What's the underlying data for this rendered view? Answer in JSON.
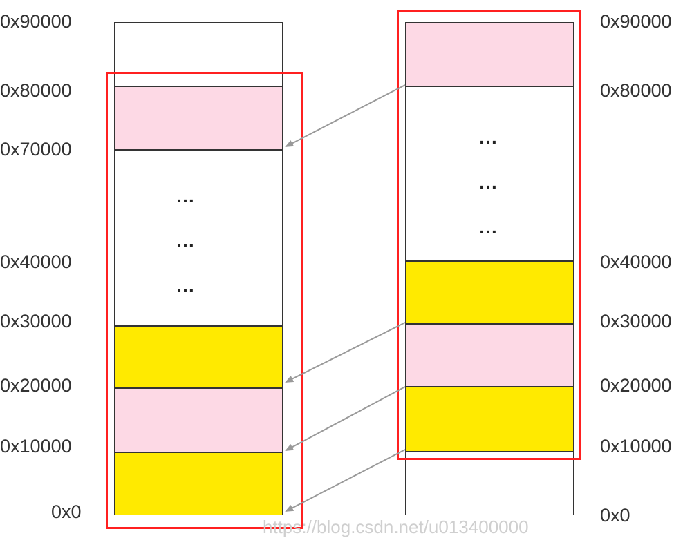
{
  "left_addresses": [
    "0x90000",
    "0x80000",
    "0x70000",
    "0x40000",
    "0x30000",
    "0x20000",
    "0x10000",
    "0x0"
  ],
  "right_addresses": [
    "0x90000",
    "0x80000",
    "0x40000",
    "0x30000",
    "0x20000",
    "0x10000",
    "0x0"
  ],
  "left_column": {
    "segments": [
      "white",
      "pink",
      "white",
      "yellow",
      "pink",
      "yellow"
    ],
    "dots": [
      "…",
      "…",
      "…"
    ]
  },
  "right_column": {
    "segments": [
      "pink",
      "white",
      "yellow",
      "pink",
      "yellow",
      "white"
    ],
    "dots": [
      "…",
      "…",
      "…"
    ]
  },
  "colors": {
    "pink": "#fdd9e5",
    "yellow": "#ffea00",
    "highlight": "#ff2020",
    "arrow": "#999999",
    "border": "#333333"
  },
  "watermark": "https://blog.csdn.net/u013400000"
}
